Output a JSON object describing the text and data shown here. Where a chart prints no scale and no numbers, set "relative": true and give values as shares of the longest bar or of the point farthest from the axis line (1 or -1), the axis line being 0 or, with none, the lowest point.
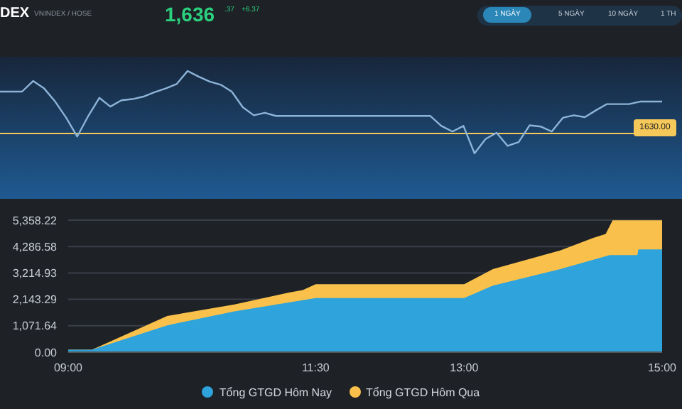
{
  "chart_data": [
    {
      "type": "other",
      "annotations": [
        "DEX",
        "VNINDEX / HOSE",
        "1,636",
        ".37",
        "+6.37",
        "1 NGÀY",
        "5 NGÀY",
        "10 NGÀY",
        "1 TH",
        "1630.00"
      ]
    },
    {
      "type": "line",
      "relative": true,
      "color": "#8db4d8",
      "marker": "none",
      "line_style": "solid",
      "tick_labels": false,
      "grid": false,
      "categories": [
        null,
        null,
        null,
        null,
        null,
        null,
        null,
        null,
        null,
        null,
        null,
        null,
        null,
        null,
        null,
        null,
        null,
        null,
        null,
        null,
        null,
        null,
        null,
        null,
        null,
        null,
        null,
        null,
        null,
        null,
        null,
        null,
        null,
        null,
        null,
        null,
        null,
        null,
        null,
        null,
        null,
        null,
        null,
        null,
        null,
        null,
        null,
        null,
        null,
        null,
        null,
        null,
        null,
        null,
        null,
        null,
        null,
        null,
        null,
        null,
        null
      ],
      "values": [
        0.67,
        0.67,
        0.67,
        0.84,
        0.72,
        0.51,
        0.25,
        -0.05,
        0.28,
        0.57,
        0.43,
        0.53,
        0.55,
        0.59,
        0.66,
        0.72,
        0.79,
        1.0,
        0.91,
        0.83,
        0.78,
        0.67,
        0.42,
        0.29,
        0.33,
        0.28,
        0.28,
        0.28,
        0.28,
        0.28,
        0.28,
        0.28,
        0.28,
        0.28,
        0.28,
        0.28,
        0.28,
        0.28,
        0.28,
        0.28,
        0.12,
        0.03,
        0.12,
        -0.32,
        -0.09,
        0.01,
        -0.2,
        -0.14,
        0.13,
        0.11,
        0.03,
        0.25,
        0.29,
        0.26,
        0.37,
        0.47,
        0.47,
        0.47,
        0.51,
        0.51,
        0.51
      ],
      "ref_lines": [
        {
          "axis": "y",
          "value": 0,
          "color": "#f5c85a"
        }
      ]
    },
    {
      "type": "area",
      "xlim": [
        9,
        15
      ],
      "xticks": [
        {
          "value": 9,
          "label": "09:00"
        },
        {
          "value": 11.5,
          "label": "11:30"
        },
        {
          "value": 13,
          "label": "13:00"
        },
        {
          "value": 15,
          "label": "15:00"
        }
      ],
      "ylim": [
        0,
        5358.22
      ],
      "yticks": [
        {
          "value": 0,
          "label": "0.00"
        },
        {
          "value": 1071.64,
          "label": "1,071.64"
        },
        {
          "value": 2143.29,
          "label": "2,143.29"
        },
        {
          "value": 3214.93,
          "label": "3,214.93"
        },
        {
          "value": 4286.58,
          "label": "4,286.58"
        },
        {
          "value": 5358.22,
          "label": "5,358.22"
        }
      ],
      "grid": "y",
      "legend": "bottom",
      "series": [
        {
          "name": "Tổng GTGD Hôm Nay",
          "color": "#2ea3dc",
          "x": [
            9,
            9.24,
            10,
            10.68,
            11.5,
            13,
            13.29,
            13.97,
            14.47,
            14.75,
            14.76,
            15
          ],
          "values": [
            100,
            100,
            1090,
            1660,
            2200,
            2200,
            2700,
            3370,
            3940,
            3940,
            4170,
            4170
          ]
        },
        {
          "name": "Tổng GTGD Hôm Qua",
          "color": "#f9c14b",
          "x": [
            9,
            9.24,
            10,
            10.68,
            11.23,
            11.37,
            11.5,
            13,
            13.29,
            13.97,
            14.3,
            14.43,
            14.5,
            15
          ],
          "values": [
            100,
            100,
            1470,
            1940,
            2420,
            2520,
            2760,
            2760,
            3370,
            4130,
            4630,
            4800,
            5350,
            5350
          ]
        }
      ]
    }
  ]
}
